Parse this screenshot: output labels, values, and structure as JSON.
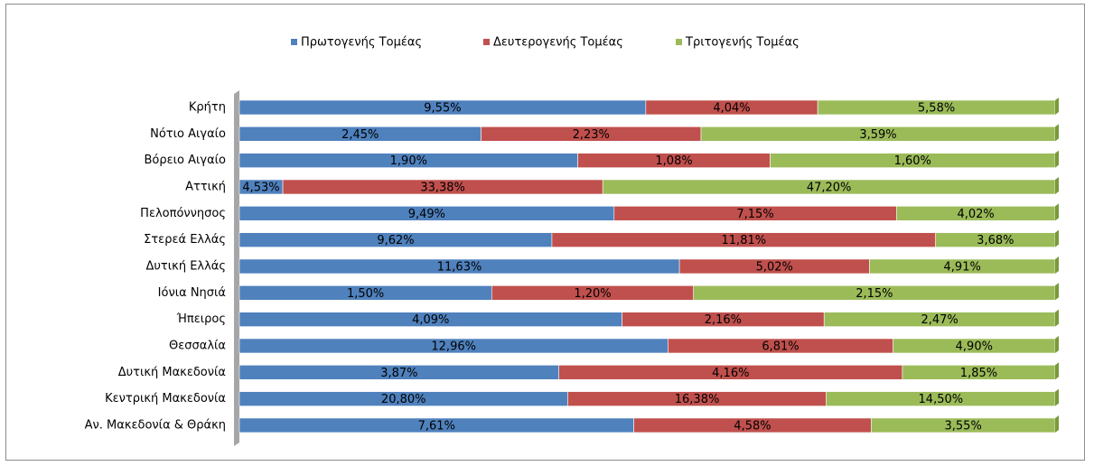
{
  "chart_data": {
    "type": "bar",
    "orientation": "horizontal",
    "stacking": "percent",
    "categories": [
      "Κρήτη",
      "Νότιο Αιγαίο",
      "Βόρειο Αιγαίο",
      "Αττική",
      "Πελοπόννησος",
      "Στερεά Ελλάς",
      "Δυτική Ελλάς",
      "Ιόνια Νησιά",
      "Ήπειρος",
      "Θεσσαλία",
      "Δυτική Μακεδονία",
      "Κεντρική Μακεδονία",
      "Αν. Μακεδονία & Θράκη"
    ],
    "legend": "top",
    "series": [
      {
        "name": "Πρωτογενής Τομέας",
        "color": "#4f81bd",
        "values": [
          9.55,
          2.45,
          1.9,
          4.53,
          9.49,
          9.62,
          11.63,
          1.5,
          4.09,
          12.96,
          3.87,
          20.8,
          7.61
        ],
        "value_labels": [
          "9,55%",
          "2,45%",
          "1,90%",
          "4,53%",
          "9,49%",
          "9,62%",
          "11,63%",
          "1,50%",
          "4,09%",
          "12,96%",
          "3,87%",
          "20,80%",
          "7,61%"
        ]
      },
      {
        "name": "Δευτερογενής Τομέας",
        "color": "#c0504d",
        "values": [
          4.04,
          2.23,
          1.08,
          33.38,
          7.15,
          11.81,
          5.02,
          1.2,
          2.16,
          6.81,
          4.16,
          16.38,
          4.58
        ],
        "value_labels": [
          "4,04%",
          "2,23%",
          "1,08%",
          "33,38%",
          "7,15%",
          "11,81%",
          "5,02%",
          "1,20%",
          "2,16%",
          "6,81%",
          "4,16%",
          "16,38%",
          "4,58%"
        ]
      },
      {
        "name": "Τριτογενής Τομέας",
        "color": "#9bbb59",
        "values": [
          5.58,
          3.59,
          1.6,
          47.2,
          4.02,
          3.68,
          4.91,
          2.15,
          2.47,
          4.9,
          1.85,
          14.5,
          3.55
        ],
        "value_labels": [
          "5,58%",
          "3,59%",
          "1,60%",
          "47,20%",
          "4,02%",
          "3,68%",
          "4,91%",
          "2,15%",
          "2,47%",
          "4,90%",
          "1,85%",
          "14,50%",
          "3,55%"
        ]
      }
    ]
  }
}
